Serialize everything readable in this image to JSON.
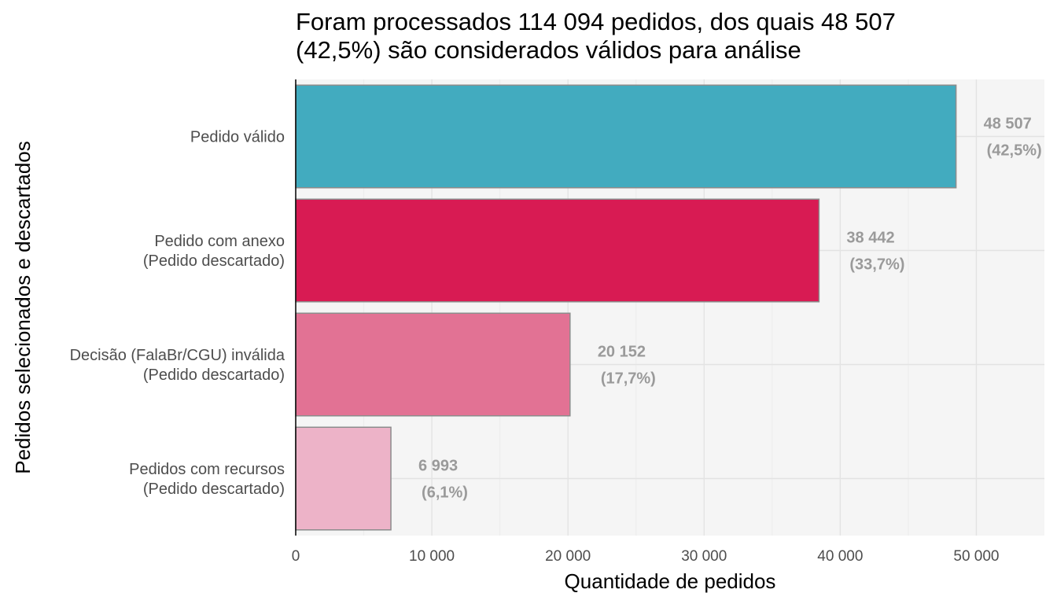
{
  "chart_data": {
    "type": "bar",
    "orientation": "horizontal",
    "title_lines": [
      "Foram processados 114 094 pedidos, dos quais 48 507",
      "(42,5%) são considerados válidos para análise"
    ],
    "xlabel": "Quantidade de pedidos",
    "ylabel": "Pedidos selecionados e descartados",
    "xlim": [
      0,
      55000
    ],
    "x_ticks": [
      0,
      10000,
      20000,
      30000,
      40000,
      50000
    ],
    "x_tick_labels": [
      "0",
      "10 000",
      "20 000",
      "30 000",
      "40 000",
      "50 000"
    ],
    "grid": true,
    "legend": "none",
    "categories": [
      {
        "lines": [
          "Pedido válido"
        ],
        "value": 48507,
        "value_label": "48 507",
        "pct_label": "(42,5%)",
        "color": "#42abbf"
      },
      {
        "lines": [
          "Pedido com anexo",
          "(Pedido descartado)"
        ],
        "value": 38442,
        "value_label": "38 442",
        "pct_label": "(33,7%)",
        "color": "#d81b53"
      },
      {
        "lines": [
          "Decisão (FalaBr/CGU) inválida",
          "(Pedido descartado)"
        ],
        "value": 20152,
        "value_label": "20 152",
        "pct_label": "(17,7%)",
        "color": "#e27294"
      },
      {
        "lines": [
          "Pedidos com recursos",
          "(Pedido descartado)"
        ],
        "value": 6993,
        "value_label": "6 993",
        "pct_label": "(6,1%)",
        "color": "#edb3c8"
      }
    ]
  }
}
